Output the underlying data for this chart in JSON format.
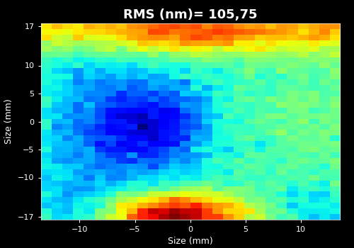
{
  "title": "RMS (nm)= 105,75",
  "xlabel": "Size (mm)",
  "ylabel": "Size (mm)",
  "x_range": [
    -13.5,
    13.5
  ],
  "y_range": [
    -17.5,
    17.5
  ],
  "x_ticks": [
    -10,
    -5,
    0,
    5,
    10
  ],
  "y_ticks": [
    -17,
    -10,
    -5,
    0,
    5,
    10,
    17
  ],
  "colormap": "jet",
  "background_color": "#000000",
  "text_color": "#ffffff",
  "title_fontsize": 13,
  "label_fontsize": 9,
  "tick_fontsize": 8,
  "grid_nx": 28,
  "grid_ny": 35,
  "seed": 7
}
